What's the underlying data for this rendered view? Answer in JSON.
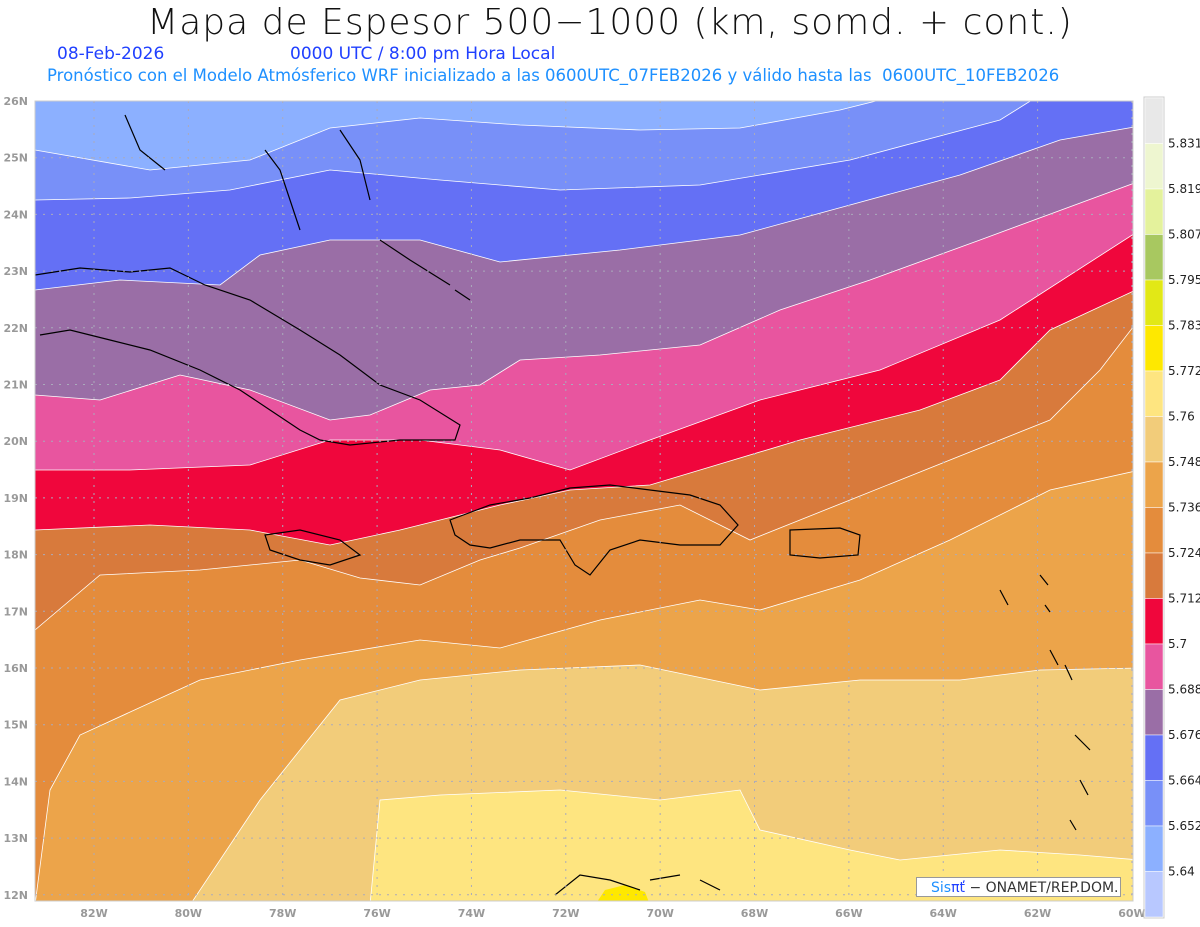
{
  "header": {
    "title": "Mapa de Espesor 500−1000 (km, somd. + cont.)",
    "date": "08-Feb-2026",
    "time": "0000 UTC / 8:00 pm Hora Local",
    "description": "Pronóstico con el Modelo Atmósferico WRF inicializado a las 0600UTC_07FEB2026 y válido hasta las  0600UTC_10FEB2026"
  },
  "map": {
    "lat_labels": [
      "26N",
      "25N",
      "24N",
      "23N",
      "22N",
      "21N",
      "20N",
      "19N",
      "18N",
      "17N",
      "16N",
      "15N",
      "14N",
      "13N",
      "12N"
    ],
    "lon_labels": [
      "82W",
      "80W",
      "78W",
      "76W",
      "74W",
      "72W",
      "70W",
      "68W",
      "66W",
      "64W",
      "62W",
      "60W"
    ]
  },
  "colorbar": {
    "levels": [
      "5.831",
      "5.819",
      "5.807",
      "5.795",
      "5.783",
      "5.772",
      "5.76",
      "5.748",
      "5.736",
      "5.724",
      "5.712",
      "5.7",
      "5.688",
      "5.676",
      "5.664",
      "5.652",
      "5.64"
    ],
    "colors": [
      "#e8e8e8",
      "#eef6d0",
      "#e4f29c",
      "#a8c860",
      "#e2e816",
      "#fee800",
      "#fee580",
      "#f2cc7a",
      "#eca44a",
      "#e48c3c",
      "#d87a3c",
      "#f0063c",
      "#e8559f",
      "#9a6ea6",
      "#6470f5",
      "#7890f8",
      "#8cb0ff",
      "#b8c8ff"
    ]
  },
  "credit": {
    "sis": "Sis",
    "pi": "πť",
    "rest": " − ONAMET/REP.DOM."
  }
}
